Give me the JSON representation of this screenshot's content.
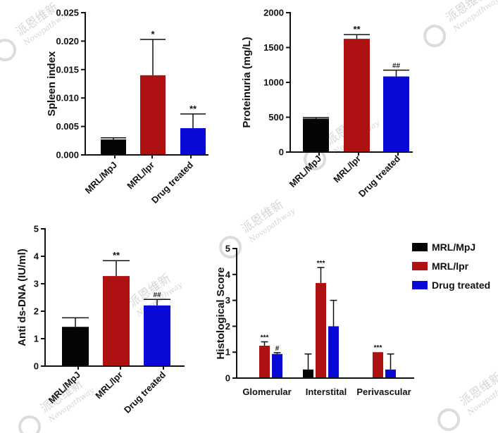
{
  "watermark": {
    "cn": "派恩维新",
    "en": "Novopathway"
  },
  "colors": {
    "MRL/MpJ": "#050505",
    "MRL/lpr": "#ad1111",
    "Drug treated": "#0a0ad6"
  },
  "chart_data": [
    {
      "type": "bar",
      "ylabel": "Spleen index",
      "ylim": [
        0,
        0.025
      ],
      "yticks": [
        "0.000",
        "0.005",
        "0.010",
        "0.015",
        "0.020",
        "0.025"
      ],
      "categories": [
        "MRL/MpJ",
        "MRL/lpr",
        "Drug treated"
      ],
      "values": [
        0.0027,
        0.014,
        0.0047
      ],
      "errors": [
        0.0003,
        0.0063,
        0.0025
      ],
      "annotations": [
        "",
        "*",
        "**"
      ]
    },
    {
      "type": "bar",
      "ylabel": "Proteinuria (mg/L)",
      "ylim": [
        0,
        2000
      ],
      "yticks": [
        "0",
        "500",
        "1000",
        "1500",
        "2000"
      ],
      "categories": [
        "MRL/MpJ",
        "MRL/lpr",
        "Drug treated"
      ],
      "values": [
        480,
        1625,
        1085
      ],
      "errors": [
        15,
        60,
        90
      ],
      "annotations": [
        "",
        "**",
        "##"
      ]
    },
    {
      "type": "bar",
      "ylabel": "Anti ds-DNA (IU/ml)",
      "ylim": [
        0,
        5
      ],
      "yticks": [
        "0",
        "1",
        "2",
        "3",
        "4",
        "5"
      ],
      "categories": [
        "MRL/MpJ",
        "MRL/lpr",
        "Drug treated"
      ],
      "values": [
        1.43,
        3.28,
        2.21
      ],
      "errors": [
        0.33,
        0.56,
        0.22
      ],
      "annotations": [
        "",
        "**",
        "##"
      ]
    },
    {
      "type": "bar",
      "ylabel": "Histological Score",
      "ylim": [
        0,
        5
      ],
      "yticks": [
        "0",
        "1",
        "2",
        "3",
        "4",
        "5"
      ],
      "categories": [
        "Glomerular",
        "Interstital",
        "Perivascular"
      ],
      "legend": {
        "position": "top-right",
        "entries": [
          "MRL/MpJ",
          "MRL/lpr",
          "Drug treated"
        ]
      },
      "series": [
        {
          "name": "MRL/MpJ",
          "values": [
            0,
            0.33,
            0
          ],
          "errors": [
            0,
            0.6,
            0
          ],
          "annotations": [
            "",
            "",
            ""
          ]
        },
        {
          "name": "MRL/lpr",
          "values": [
            1.25,
            3.67,
            1.0
          ],
          "errors": [
            0.15,
            0.6,
            0
          ],
          "annotations": [
            "***",
            "***",
            "***"
          ]
        },
        {
          "name": "Drug treated",
          "values": [
            0.93,
            2.0,
            0.33
          ],
          "errors": [
            0.05,
            1.0,
            0.6
          ],
          "annotations": [
            "#",
            "",
            ""
          ]
        }
      ]
    }
  ]
}
